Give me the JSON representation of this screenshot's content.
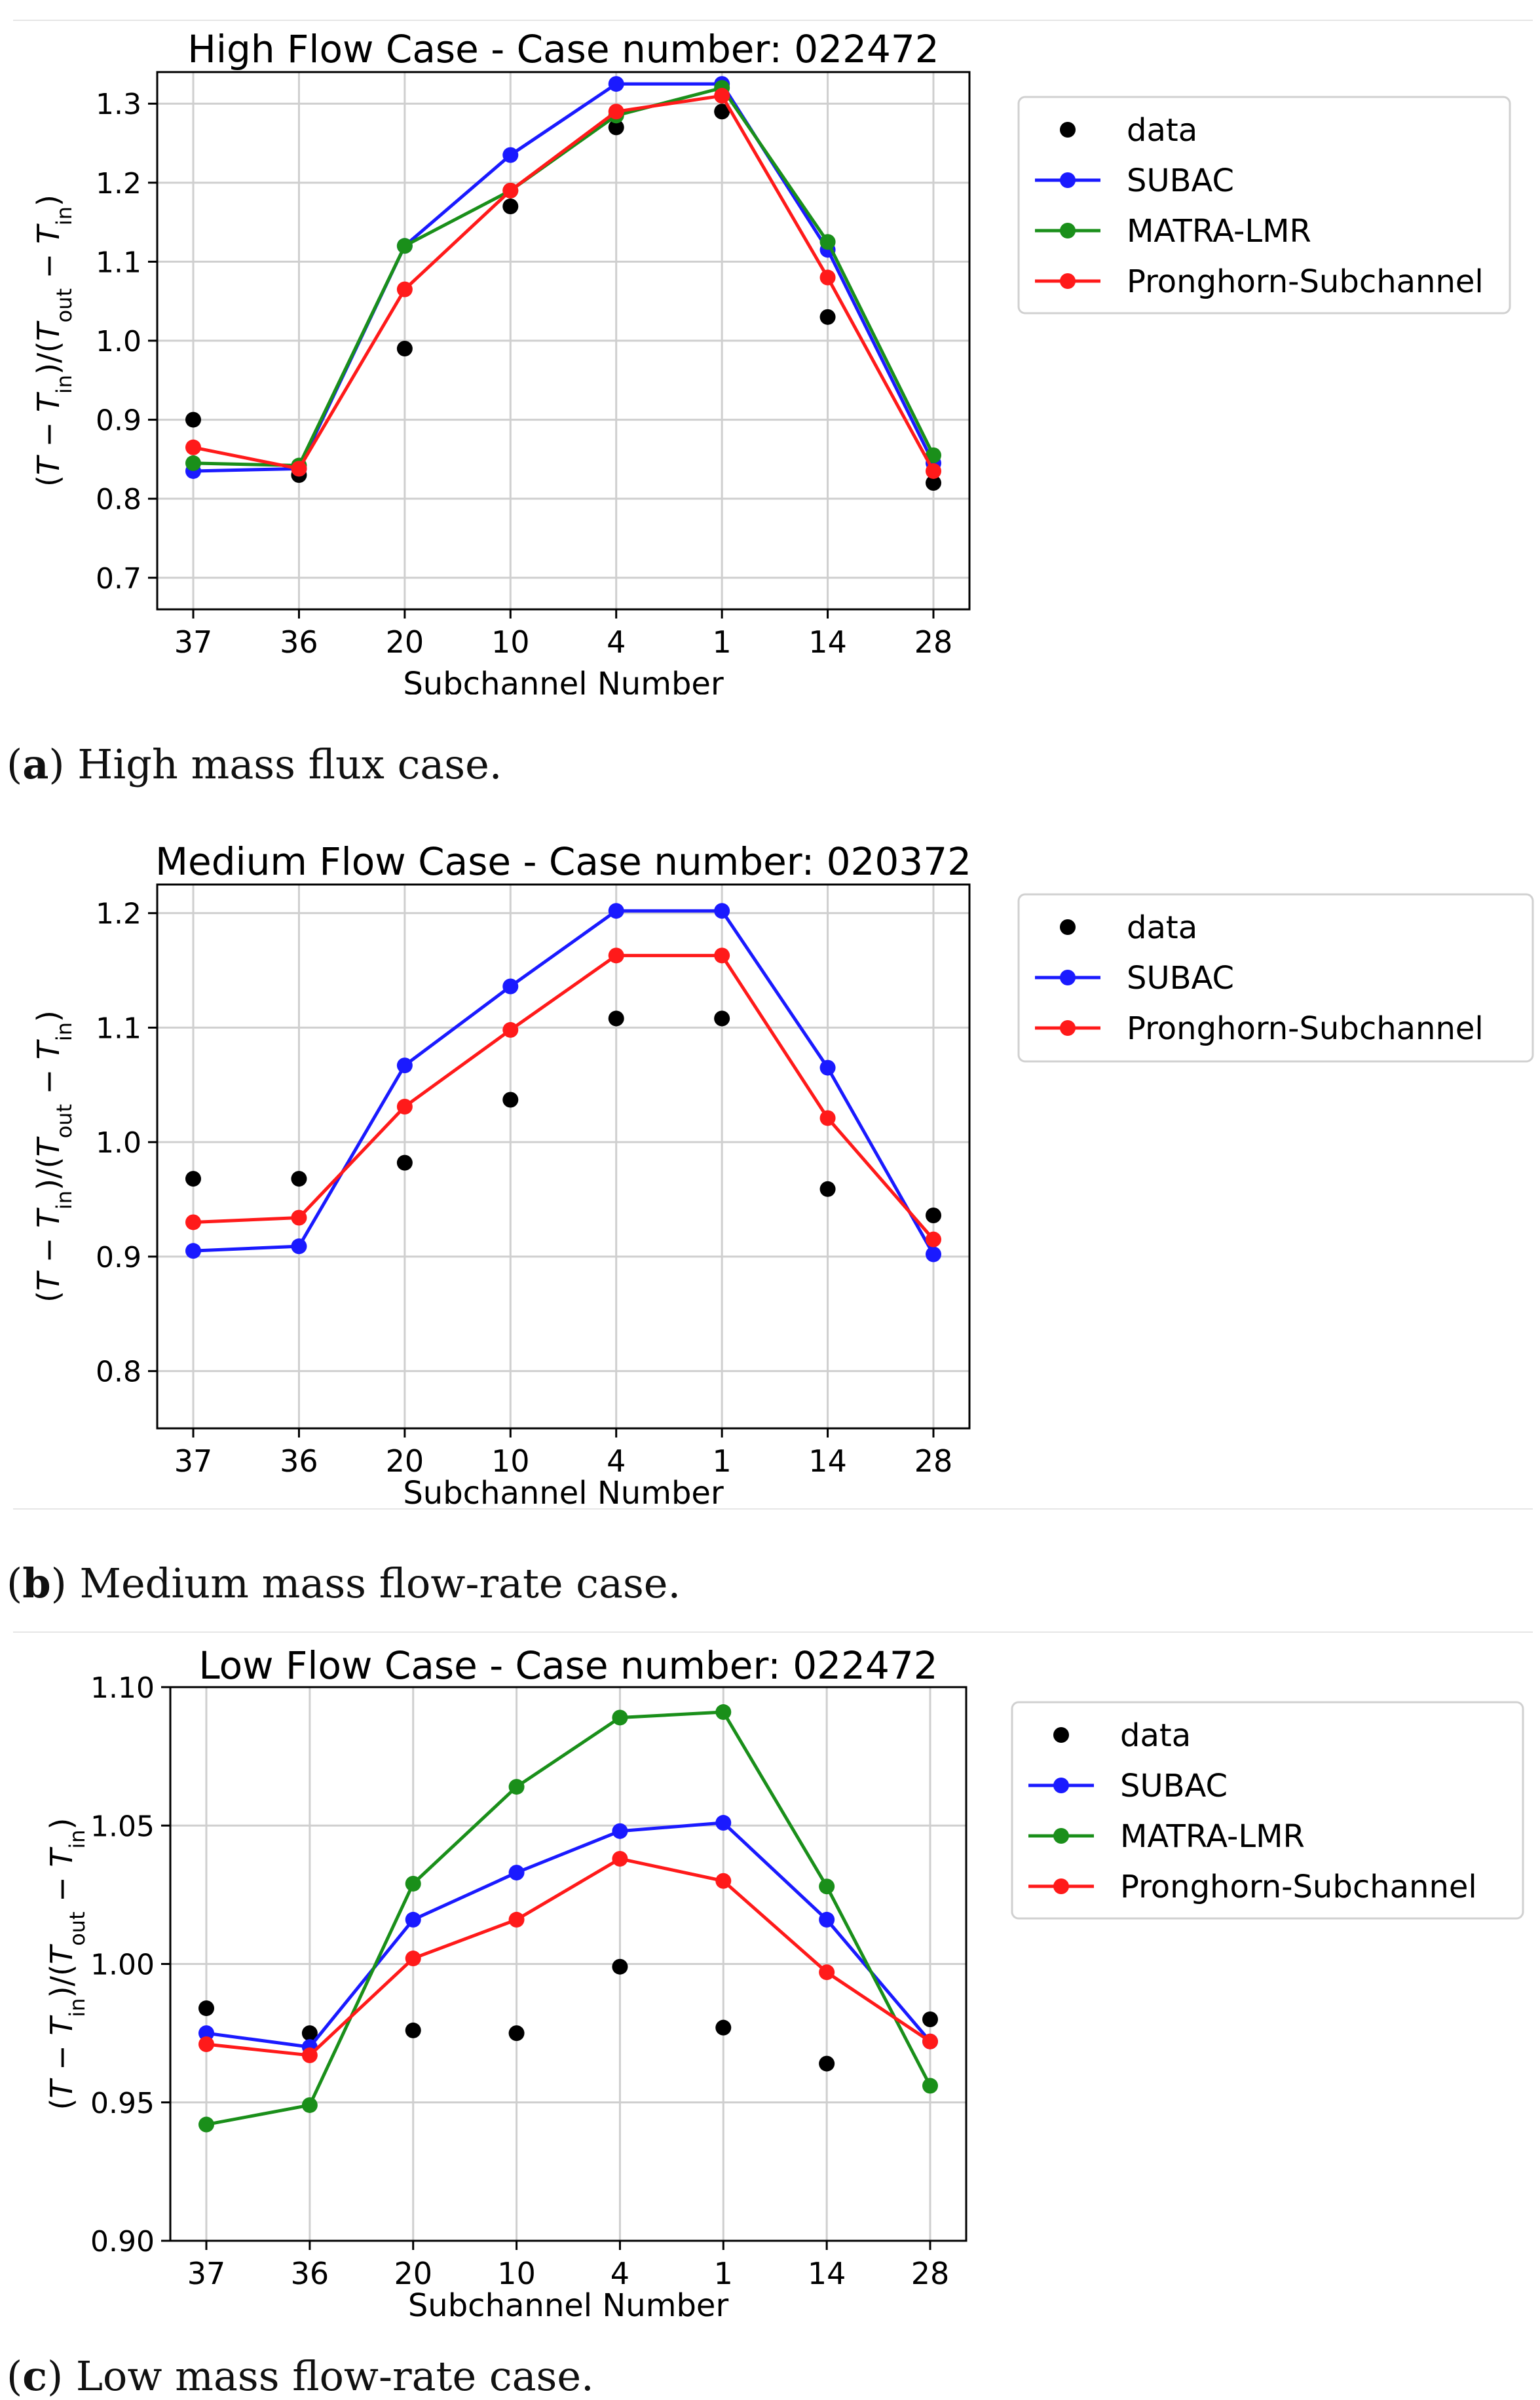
{
  "colors": {
    "data": "#000000",
    "SUBAC": "#1a1aff",
    "MATRA-LMR": "#1a8f1a",
    "Pronghorn-Subchannel": "#ff1a1a",
    "grid": "#cfcfcf"
  },
  "chart_data": [
    {
      "type": "line",
      "title": "High Flow Case - Case number: 022472",
      "xlabel": "Subchannel Number",
      "ylabel": "(T − T_in)/(T_out − T_in)",
      "categories": [
        "37",
        "36",
        "20",
        "10",
        "4",
        "1",
        "14",
        "28"
      ],
      "ylim": [
        0.66,
        1.34
      ],
      "yticks": [
        0.7,
        0.8,
        0.9,
        1.0,
        1.1,
        1.2,
        1.3
      ],
      "ytick_labels": [
        "0.7",
        "0.8",
        "0.9",
        "1.0",
        "1.1",
        "1.2",
        "1.3"
      ],
      "grid": true,
      "legend": "outside-right",
      "series": [
        {
          "name": "data",
          "style": "markers",
          "values": [
            0.9,
            0.83,
            0.99,
            1.17,
            1.27,
            1.29,
            1.03,
            0.82
          ]
        },
        {
          "name": "SUBAC",
          "style": "line-markers",
          "values": [
            0.835,
            0.838,
            1.12,
            1.235,
            1.325,
            1.325,
            1.115,
            0.845
          ]
        },
        {
          "name": "MATRA-LMR",
          "style": "line-markers",
          "values": [
            0.845,
            0.842,
            1.12,
            1.19,
            1.285,
            1.32,
            1.125,
            0.855
          ]
        },
        {
          "name": "Pronghorn-Subchannel",
          "style": "line-markers",
          "values": [
            0.865,
            0.838,
            1.065,
            1.19,
            1.29,
            1.31,
            1.08,
            0.835
          ]
        }
      ],
      "caption_label": "a",
      "caption_text": "High mass flux case."
    },
    {
      "type": "line",
      "title": "Medium Flow Case - Case number: 020372",
      "xlabel": "Subchannel Number",
      "ylabel": "(T − T_in)/(T_out − T_in)",
      "categories": [
        "37",
        "36",
        "20",
        "10",
        "4",
        "1",
        "14",
        "28"
      ],
      "ylim": [
        0.75,
        1.225
      ],
      "yticks": [
        0.8,
        0.9,
        1.0,
        1.1,
        1.2
      ],
      "ytick_labels": [
        "0.8",
        "0.9",
        "1.0",
        "1.1",
        "1.2"
      ],
      "grid": true,
      "legend": "outside-right",
      "series": [
        {
          "name": "data",
          "style": "markers",
          "values": [
            0.968,
            0.968,
            0.982,
            1.037,
            1.108,
            1.108,
            0.959,
            0.936
          ]
        },
        {
          "name": "SUBAC",
          "style": "line-markers",
          "values": [
            0.905,
            0.909,
            1.067,
            1.136,
            1.202,
            1.202,
            1.065,
            0.902
          ]
        },
        {
          "name": "Pronghorn-Subchannel",
          "style": "line-markers",
          "values": [
            0.93,
            0.934,
            1.031,
            1.098,
            1.163,
            1.163,
            1.021,
            0.915
          ]
        }
      ],
      "caption_label": "b",
      "caption_text": "Medium mass flow-rate case."
    },
    {
      "type": "line",
      "title": "Low Flow Case - Case number: 022472",
      "xlabel": "Subchannel Number",
      "ylabel": "(T − T_in)/(T_out − T_in)",
      "categories": [
        "37",
        "36",
        "20",
        "10",
        "4",
        "1",
        "14",
        "28"
      ],
      "ylim": [
        0.9,
        1.1
      ],
      "yticks": [
        0.9,
        0.95,
        1.0,
        1.05,
        1.1
      ],
      "ytick_labels": [
        "0.90",
        "0.95",
        "1.00",
        "1.05",
        "1.10"
      ],
      "grid": true,
      "legend": "outside-right",
      "series": [
        {
          "name": "data",
          "style": "markers",
          "values": [
            0.984,
            0.975,
            0.976,
            0.975,
            0.999,
            0.977,
            0.964,
            0.98
          ]
        },
        {
          "name": "SUBAC",
          "style": "line-markers",
          "values": [
            0.975,
            0.97,
            1.016,
            1.033,
            1.048,
            1.051,
            1.016,
            0.972
          ]
        },
        {
          "name": "MATRA-LMR",
          "style": "line-markers",
          "values": [
            0.942,
            0.949,
            1.029,
            1.064,
            1.089,
            1.091,
            1.028,
            0.956
          ]
        },
        {
          "name": "Pronghorn-Subchannel",
          "style": "line-markers",
          "values": [
            0.971,
            0.967,
            1.002,
            1.016,
            1.038,
            1.03,
            0.997,
            0.972
          ]
        }
      ],
      "caption_label": "c",
      "caption_text": "Low mass flow-rate case."
    }
  ]
}
